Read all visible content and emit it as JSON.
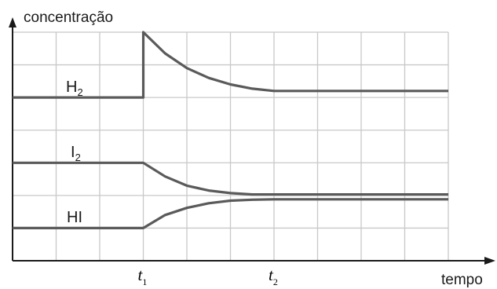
{
  "chart_data": {
    "type": "line",
    "title": "",
    "xlabel": "tempo",
    "ylabel": "concentração",
    "x_ticks": [
      {
        "base": "t",
        "sub": "1",
        "x": 3
      },
      {
        "base": "t",
        "sub": "2",
        "x": 6
      }
    ],
    "xlim": [
      0,
      10
    ],
    "ylim": [
      0,
      7
    ],
    "grid": true,
    "series": [
      {
        "name": "H2",
        "label": {
          "base": "H",
          "sub": "2"
        },
        "color": "#5a5a5a",
        "points": [
          [
            0,
            5
          ],
          [
            3,
            5
          ],
          [
            3,
            7
          ],
          [
            3.5,
            6.35
          ],
          [
            4,
            5.9
          ],
          [
            4.5,
            5.6
          ],
          [
            5,
            5.4
          ],
          [
            5.5,
            5.27
          ],
          [
            6,
            5.2
          ],
          [
            10,
            5.2
          ]
        ]
      },
      {
        "name": "I2",
        "label": {
          "base": "I",
          "sub": "2"
        },
        "color": "#5a5a5a",
        "points": [
          [
            0,
            3
          ],
          [
            3,
            3
          ],
          [
            3.5,
            2.58
          ],
          [
            4,
            2.3
          ],
          [
            4.5,
            2.15
          ],
          [
            5,
            2.07
          ],
          [
            5.5,
            2.03
          ],
          [
            6,
            2.03
          ],
          [
            10,
            2.03
          ]
        ]
      },
      {
        "name": "HI",
        "label": {
          "base": "HI",
          "sub": ""
        },
        "color": "#5a5a5a",
        "points": [
          [
            0,
            1
          ],
          [
            3,
            1
          ],
          [
            3.5,
            1.4
          ],
          [
            4,
            1.62
          ],
          [
            4.5,
            1.76
          ],
          [
            5,
            1.84
          ],
          [
            5.5,
            1.87
          ],
          [
            6,
            1.88
          ],
          [
            10,
            1.88
          ]
        ]
      }
    ]
  }
}
